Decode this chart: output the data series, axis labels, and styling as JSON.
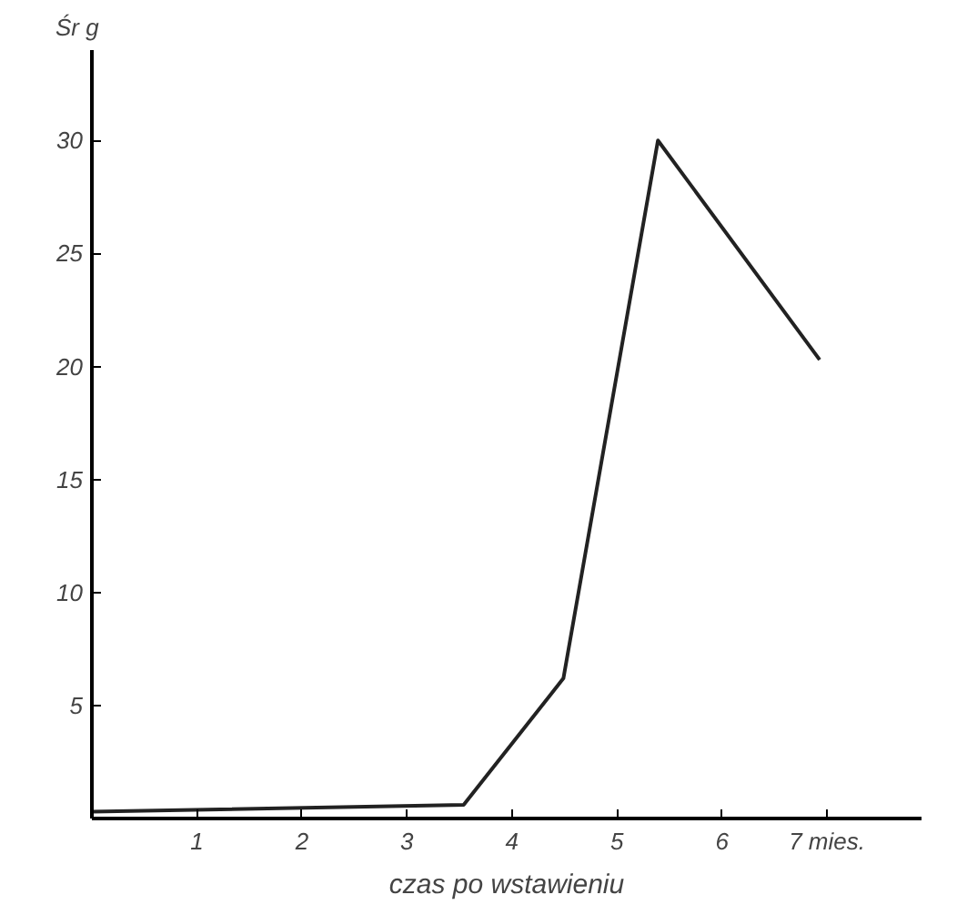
{
  "chart_data": {
    "type": "line",
    "ylabel": "Śr g",
    "xlabel": "czas po wstawieniu",
    "x": [
      0,
      3.54,
      4.49,
      5.39,
      6.93
    ],
    "series": [
      {
        "color": "#222222",
        "values": [
          0.3,
          0.6,
          6.2,
          30.0,
          20.3
        ]
      }
    ],
    "xlim": [
      0,
      7.9
    ],
    "ylim": [
      0,
      34
    ],
    "xticks": [
      1,
      2,
      3,
      4,
      5,
      6,
      {
        "value": 7,
        "label": "7 mies."
      }
    ],
    "yticks": [
      5,
      10,
      15,
      20,
      25,
      30
    ],
    "grid": false,
    "marker": "none",
    "line_style": "solid"
  }
}
